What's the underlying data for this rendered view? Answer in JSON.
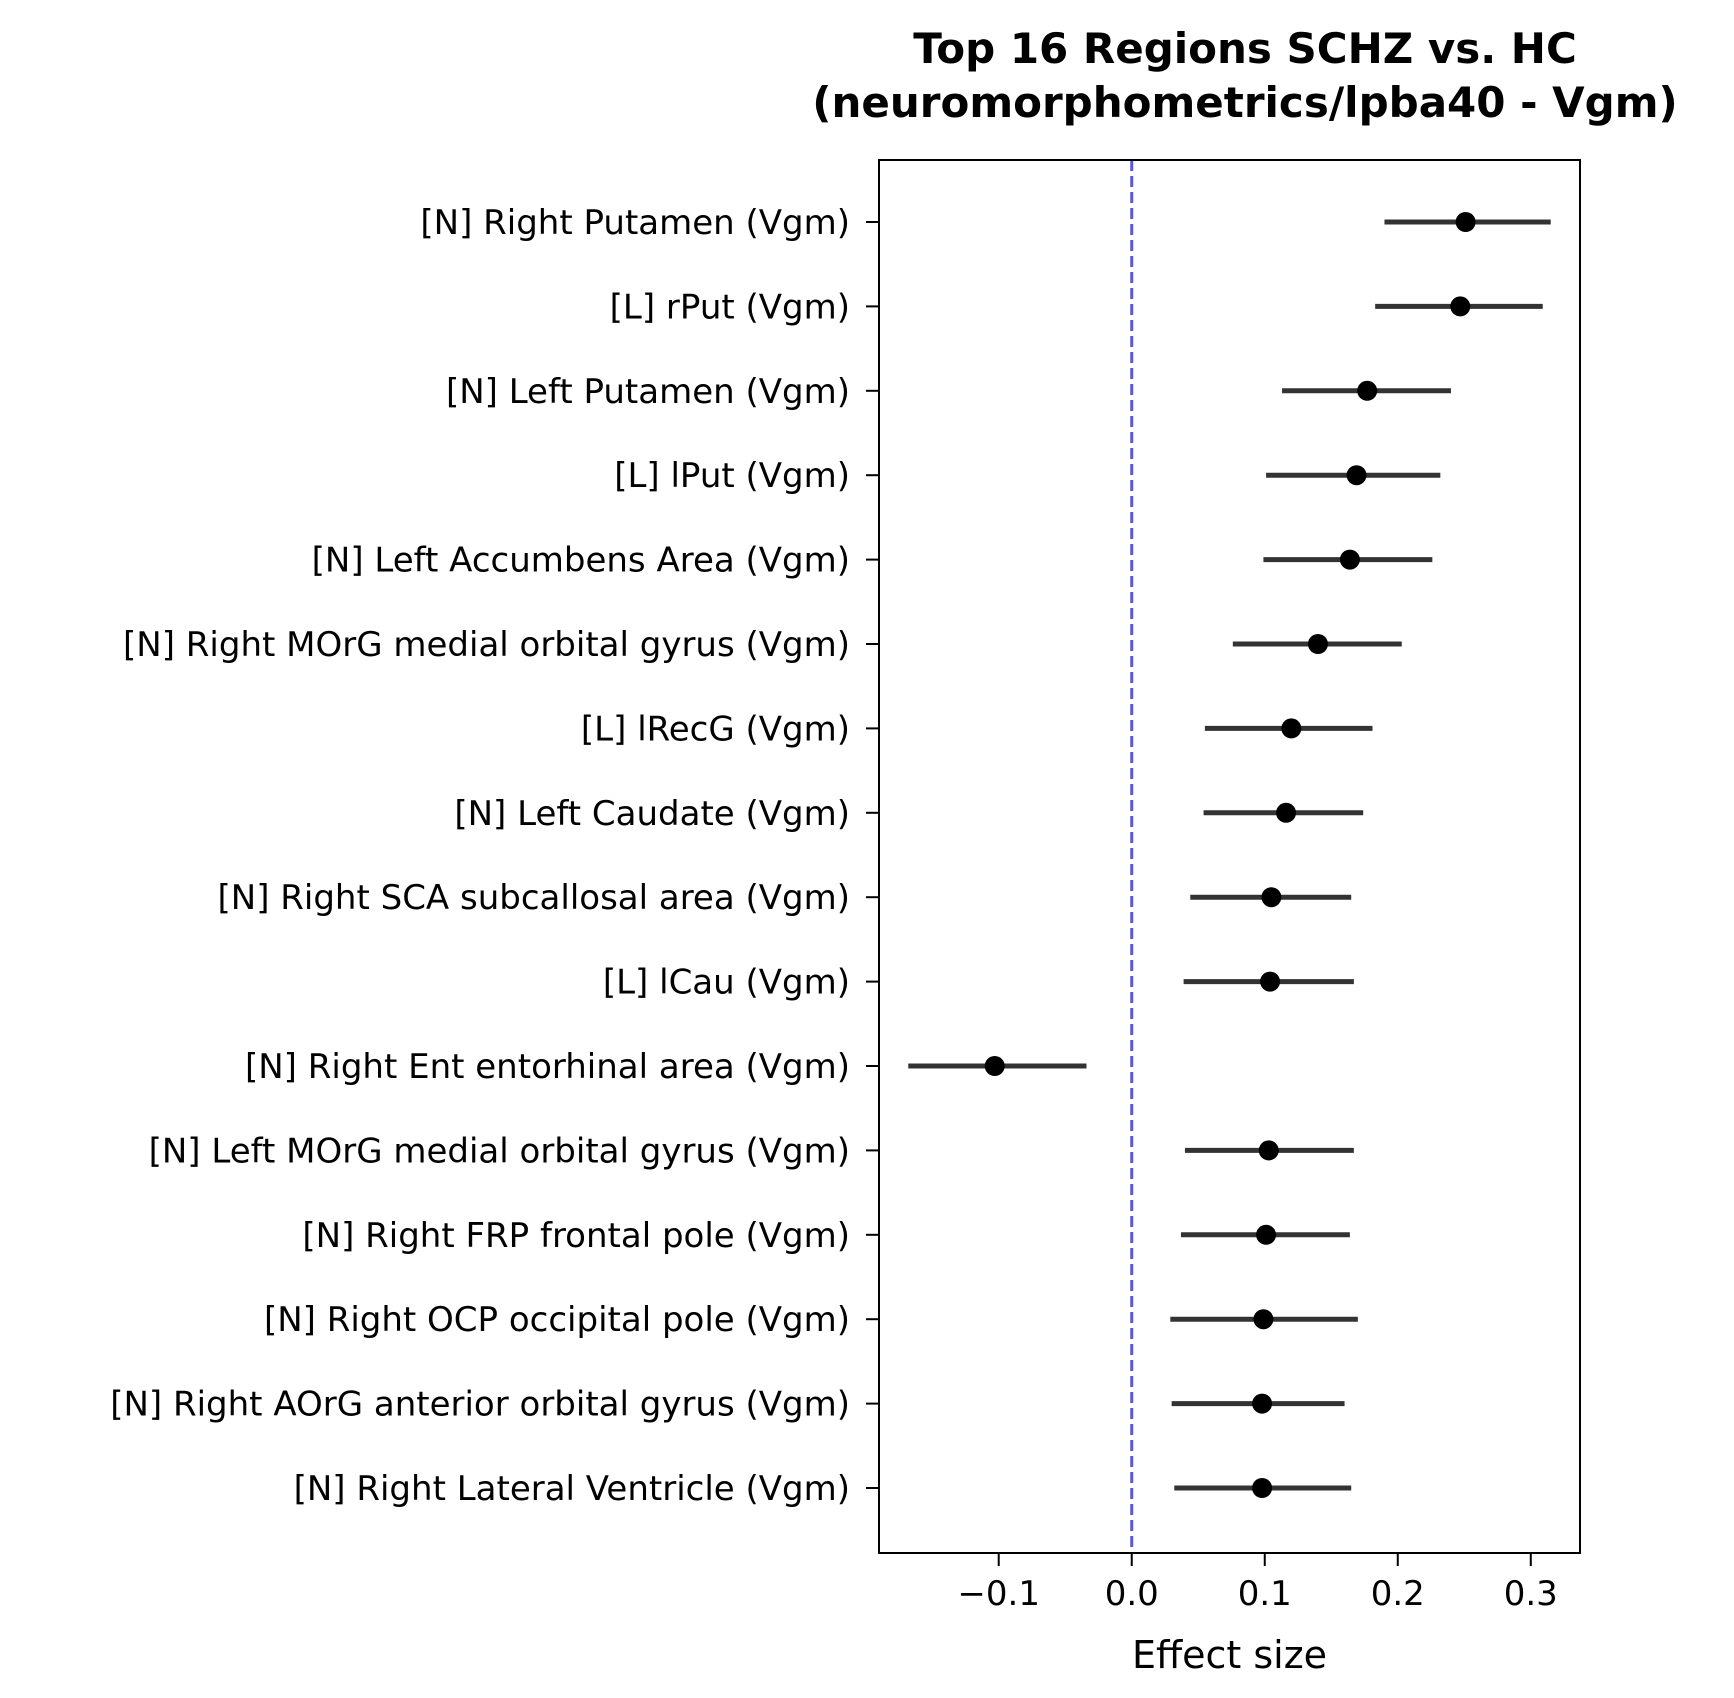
{
  "chart_data": {
    "type": "forest",
    "title": [
      "Top 16 Regions SCHZ vs. HC",
      "(neuromorphometrics/lpba40 - Vgm)"
    ],
    "xlabel": "Effect size",
    "ylabel": "",
    "xlim": [
      -0.19,
      0.337
    ],
    "xticks": [
      -0.1,
      0.0,
      0.1,
      0.2,
      0.3
    ],
    "xtick_labels": [
      "−0.1",
      "0.0",
      "0.1",
      "0.2",
      "0.3"
    ],
    "grid": false,
    "reference_line": {
      "x": 0.0,
      "color": "#3b3bdb",
      "style": "dashed"
    },
    "point_color": "#000000",
    "ci_color": "#333333",
    "regions": [
      {
        "label": "[N] Right Putamen (Vgm)",
        "effect": 0.251,
        "ci_low": 0.19,
        "ci_high": 0.315
      },
      {
        "label": "[L] rPut (Vgm)",
        "effect": 0.247,
        "ci_low": 0.183,
        "ci_high": 0.309
      },
      {
        "label": "[N] Left Putamen (Vgm)",
        "effect": 0.177,
        "ci_low": 0.113,
        "ci_high": 0.24
      },
      {
        "label": "[L] lPut (Vgm)",
        "effect": 0.169,
        "ci_low": 0.101,
        "ci_high": 0.232
      },
      {
        "label": "[N] Left Accumbens Area (Vgm)",
        "effect": 0.164,
        "ci_low": 0.099,
        "ci_high": 0.226
      },
      {
        "label": "[N] Right MOrG medial orbital gyrus (Vgm)",
        "effect": 0.14,
        "ci_low": 0.076,
        "ci_high": 0.203
      },
      {
        "label": "[L] lRecG (Vgm)",
        "effect": 0.12,
        "ci_low": 0.055,
        "ci_high": 0.181
      },
      {
        "label": "[N] Left Caudate (Vgm)",
        "effect": 0.116,
        "ci_low": 0.054,
        "ci_high": 0.174
      },
      {
        "label": "[N] Right SCA subcallosal area (Vgm)",
        "effect": 0.105,
        "ci_low": 0.044,
        "ci_high": 0.165
      },
      {
        "label": "[L] lCau (Vgm)",
        "effect": 0.104,
        "ci_low": 0.039,
        "ci_high": 0.167
      },
      {
        "label": "[N] Right Ent entorhinal area (Vgm)",
        "effect": -0.103,
        "ci_low": -0.168,
        "ci_high": -0.034
      },
      {
        "label": "[N] Left MOrG medial orbital gyrus (Vgm)",
        "effect": 0.103,
        "ci_low": 0.04,
        "ci_high": 0.167
      },
      {
        "label": "[N] Right FRP frontal pole (Vgm)",
        "effect": 0.101,
        "ci_low": 0.037,
        "ci_high": 0.164
      },
      {
        "label": "[N] Right OCP occipital pole (Vgm)",
        "effect": 0.099,
        "ci_low": 0.029,
        "ci_high": 0.17
      },
      {
        "label": "[N] Right AOrG anterior orbital gyrus (Vgm)",
        "effect": 0.098,
        "ci_low": 0.03,
        "ci_high": 0.16
      },
      {
        "label": "[N] Right Lateral Ventricle (Vgm)",
        "effect": 0.098,
        "ci_low": 0.032,
        "ci_high": 0.165
      }
    ]
  }
}
